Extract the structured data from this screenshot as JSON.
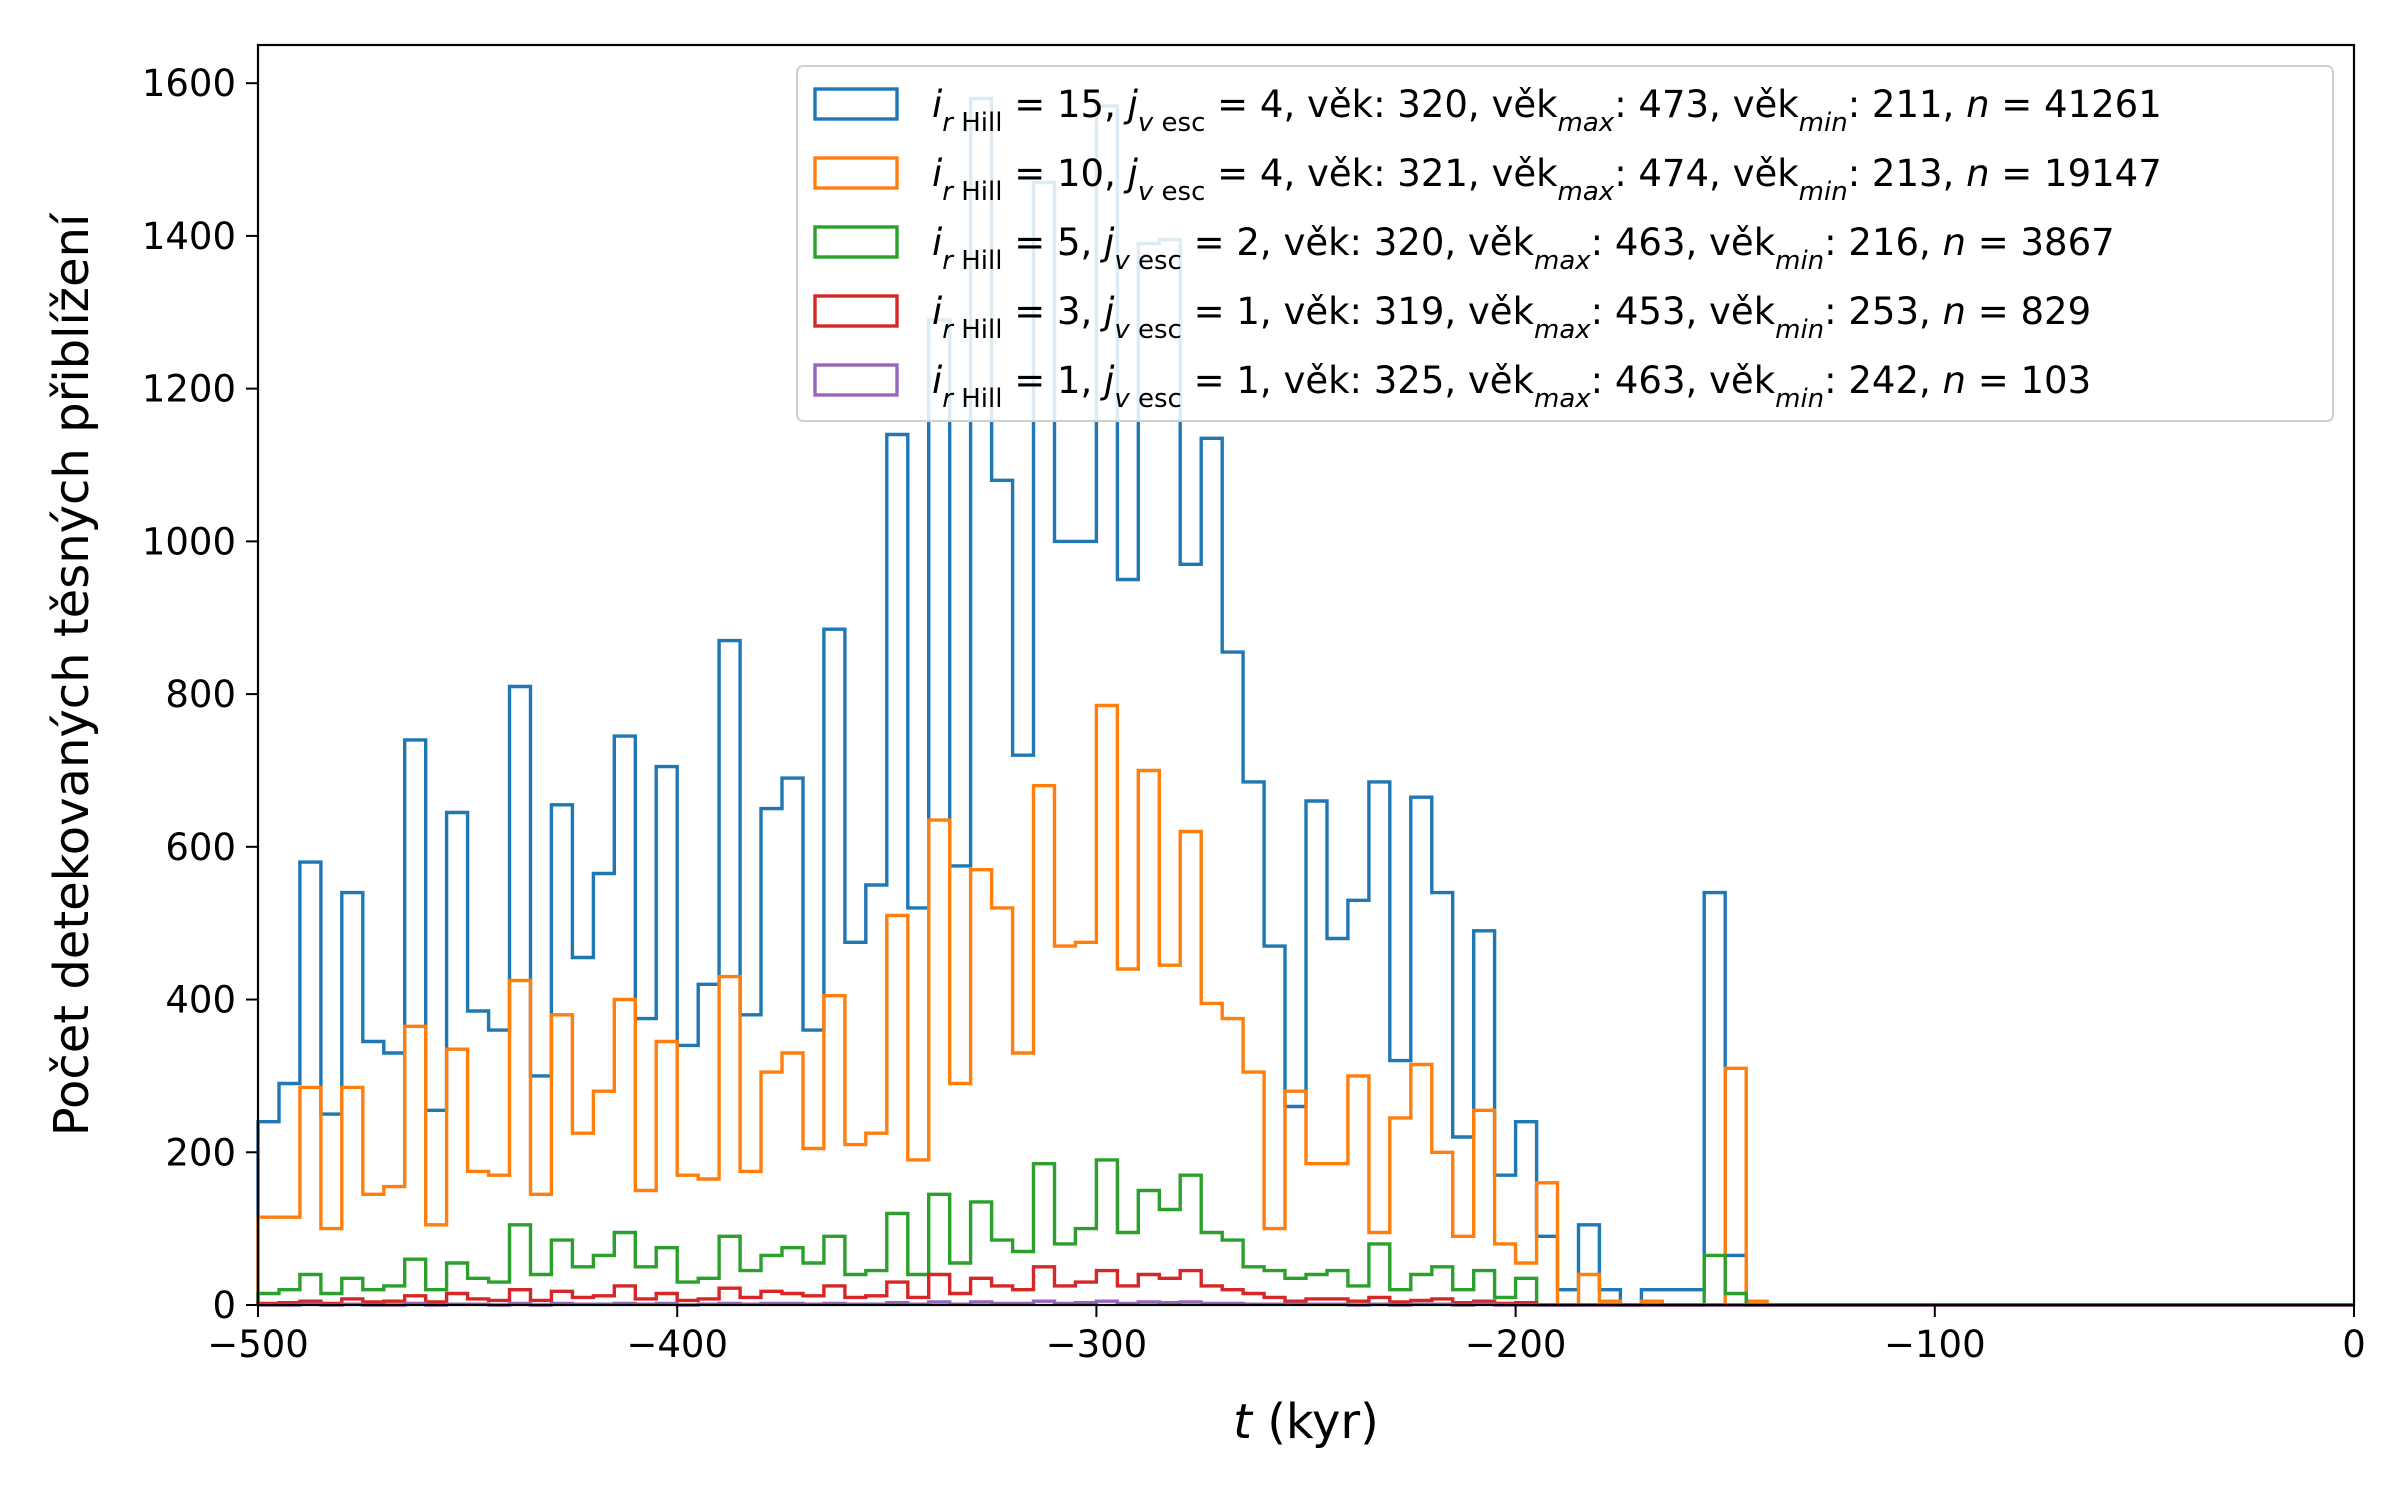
{
  "chart_data": {
    "type": "step-histogram",
    "xlabel": {
      "var": "t",
      "rest": " (kyr)"
    },
    "ylabel": "Počet detekovaných těsných přiblížení",
    "xlim": [
      -500,
      0
    ],
    "ylim": [
      0,
      1650
    ],
    "xticks": [
      -500,
      -400,
      -300,
      -200,
      -100,
      0
    ],
    "xtick_labels": [
      "−500",
      "−400",
      "−300",
      "−200",
      "−100",
      "0"
    ],
    "yticks": [
      0,
      200,
      400,
      600,
      800,
      1000,
      1200,
      1400,
      1600
    ],
    "ytick_labels": [
      "0",
      "200",
      "400",
      "600",
      "800",
      "1000",
      "1200",
      "1400",
      "1600"
    ],
    "grid": false,
    "legend_position": "top-right",
    "bin_start": -500,
    "bin_width": 5,
    "series": [
      {
        "color": "#1f77b4",
        "label": {
          "i": "15",
          "j": "4",
          "age": "320",
          "age_max": "473",
          "age_min": "211",
          "n": "41261"
        },
        "values": [
          240,
          290,
          580,
          250,
          540,
          345,
          330,
          740,
          255,
          645,
          385,
          360,
          810,
          300,
          655,
          455,
          565,
          745,
          375,
          705,
          340,
          420,
          870,
          380,
          650,
          690,
          360,
          885,
          475,
          550,
          1140,
          520,
          1290,
          575,
          1580,
          1080,
          720,
          1470,
          1000,
          1000,
          1570,
          950,
          1390,
          1395,
          970,
          1135,
          855,
          685,
          470,
          260,
          660,
          480,
          530,
          685,
          320,
          665,
          540,
          220,
          490,
          170,
          240,
          90,
          20,
          105,
          20,
          0,
          20,
          20,
          20,
          540,
          65,
          0,
          0,
          0,
          0,
          0,
          0,
          0,
          0,
          0,
          0,
          0,
          0,
          0,
          0,
          0,
          0,
          0,
          0,
          0,
          0,
          0,
          0,
          0,
          0,
          0,
          0,
          0,
          0,
          0
        ]
      },
      {
        "color": "#ff7f0e",
        "label": {
          "i": "10",
          "j": "4",
          "age": "321",
          "age_max": "474",
          "age_min": "213",
          "n": "19147"
        },
        "values": [
          115,
          115,
          285,
          100,
          285,
          145,
          155,
          365,
          105,
          335,
          175,
          170,
          425,
          145,
          380,
          225,
          280,
          400,
          150,
          345,
          170,
          165,
          430,
          175,
          305,
          330,
          205,
          405,
          210,
          225,
          510,
          190,
          635,
          290,
          570,
          520,
          330,
          680,
          470,
          475,
          785,
          440,
          700,
          445,
          620,
          395,
          375,
          305,
          100,
          280,
          185,
          185,
          300,
          95,
          245,
          315,
          200,
          90,
          255,
          80,
          55,
          160,
          0,
          40,
          5,
          0,
          5,
          0,
          0,
          0,
          310,
          5,
          0,
          0,
          0,
          0,
          0,
          0,
          0,
          0,
          0,
          0,
          0,
          0,
          0,
          0,
          0,
          0,
          0,
          0,
          0,
          0,
          0,
          0,
          0,
          0,
          0,
          0,
          0,
          0
        ]
      },
      {
        "color": "#2ca02c",
        "label": {
          "i": " 5",
          "j": "2",
          "age": "320",
          "age_max": "463",
          "age_min": "216",
          "n": "3867"
        },
        "values": [
          15,
          20,
          40,
          15,
          35,
          20,
          25,
          60,
          20,
          55,
          35,
          30,
          105,
          40,
          85,
          50,
          65,
          95,
          50,
          75,
          30,
          35,
          90,
          45,
          65,
          75,
          55,
          90,
          40,
          45,
          120,
          40,
          145,
          55,
          135,
          85,
          70,
          185,
          80,
          100,
          190,
          95,
          150,
          125,
          170,
          95,
          85,
          50,
          45,
          35,
          40,
          45,
          25,
          80,
          20,
          40,
          50,
          20,
          45,
          10,
          35,
          0,
          0,
          0,
          0,
          0,
          0,
          0,
          0,
          65,
          15,
          0,
          0,
          0,
          0,
          0,
          0,
          0,
          0,
          0,
          0,
          0,
          0,
          0,
          0,
          0,
          0,
          0,
          0,
          0,
          0,
          0,
          0,
          0,
          0,
          0,
          0,
          0,
          0,
          0
        ]
      },
      {
        "color": "#d62728",
        "label": {
          "i": " 3",
          "j": "1",
          "age": "319",
          "age_max": "453",
          "age_min": "253",
          "n": "829"
        },
        "values": [
          2,
          3,
          5,
          2,
          8,
          4,
          5,
          12,
          4,
          15,
          8,
          6,
          20,
          6,
          18,
          10,
          12,
          25,
          8,
          15,
          6,
          8,
          22,
          10,
          18,
          15,
          12,
          25,
          10,
          12,
          30,
          10,
          40,
          15,
          35,
          25,
          20,
          50,
          25,
          30,
          45,
          25,
          40,
          35,
          45,
          25,
          20,
          15,
          10,
          5,
          8,
          8,
          5,
          10,
          4,
          6,
          8,
          3,
          5,
          2,
          3,
          0,
          0,
          0,
          0,
          0,
          0,
          0,
          0,
          0,
          0,
          0,
          0,
          0,
          0,
          0,
          0,
          0,
          0,
          0,
          0,
          0,
          0,
          0,
          0,
          0,
          0,
          0,
          0,
          0,
          0,
          0,
          0,
          0,
          0,
          0,
          0,
          0,
          0,
          0
        ]
      },
      {
        "color": "#9467bd",
        "label": {
          "i": " 1",
          "j": "1",
          "age": "325",
          "age_max": "463",
          "age_min": "242",
          "n": "103"
        },
        "values": [
          0,
          0,
          1,
          0,
          1,
          0,
          0,
          2,
          0,
          1,
          1,
          0,
          2,
          0,
          2,
          1,
          1,
          2,
          1,
          2,
          0,
          1,
          2,
          1,
          2,
          2,
          1,
          2,
          1,
          1,
          3,
          1,
          4,
          1,
          4,
          2,
          2,
          5,
          2,
          3,
          5,
          2,
          4,
          3,
          4,
          2,
          2,
          1,
          1,
          1,
          1,
          1,
          0,
          1,
          0,
          1,
          1,
          0,
          1,
          0,
          0,
          0,
          0,
          0,
          0,
          0,
          0,
          0,
          0,
          0,
          0,
          0,
          0,
          0,
          0,
          0,
          0,
          0,
          0,
          0,
          0,
          0,
          0,
          0,
          0,
          0,
          0,
          0,
          0,
          0,
          0,
          0,
          0,
          0,
          0,
          0,
          0,
          0,
          0,
          0
        ]
      }
    ]
  }
}
